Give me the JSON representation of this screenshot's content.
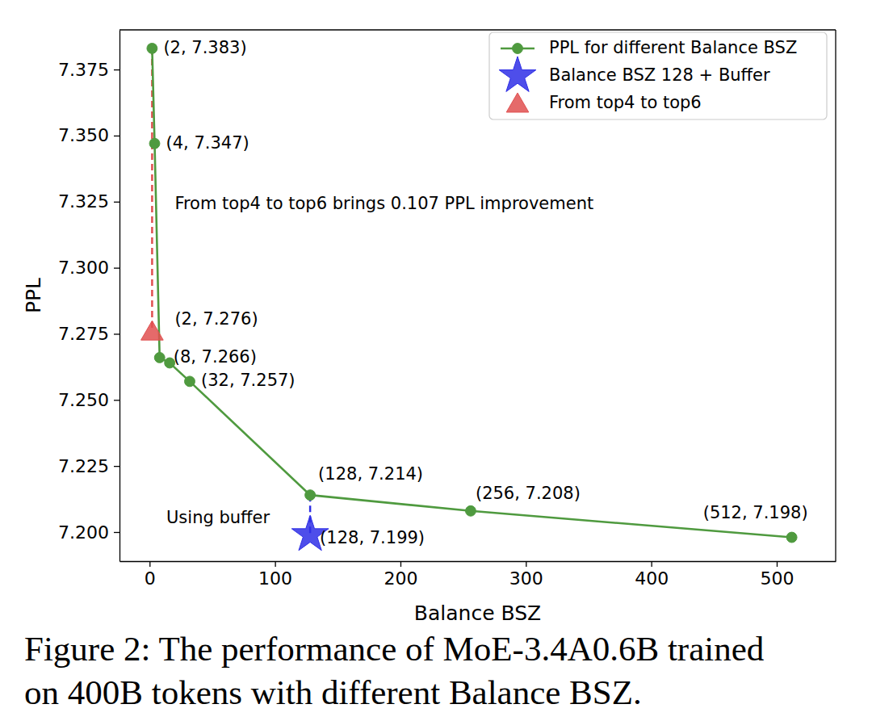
{
  "chart_data": {
    "type": "line",
    "xlabel": "Balance BSZ",
    "ylabel": "PPL",
    "xlim": [
      -24,
      547
    ],
    "ylim": [
      7.189,
      7.39
    ],
    "xticks": [
      0,
      100,
      200,
      300,
      400,
      500
    ],
    "yticks": [
      {
        "value": 7.2,
        "label": "7.200"
      },
      7.225,
      {
        "value": 7.25,
        "label": "7.250"
      },
      7.275,
      {
        "value": 7.3,
        "label": "7.300"
      },
      7.325,
      {
        "value": 7.35,
        "label": "7.350"
      },
      7.375
    ],
    "grid": false,
    "legend": "upper right",
    "data_labels": true,
    "series": [
      {
        "name": "PPL for different Balance BSZ",
        "type": "line",
        "color": "#4f9a3f",
        "marker": "circle",
        "line_style": "solid",
        "x": [
          2,
          4,
          8,
          16,
          32,
          128,
          256,
          512
        ],
        "values": [
          7.383,
          7.347,
          7.266,
          7.264,
          7.257,
          7.214,
          7.208,
          7.198
        ],
        "value_labels": [
          "(2, 7.383)",
          "(4, 7.347)",
          "(8, 7.266)",
          null,
          "(32, 7.257)",
          "(128, 7.214)",
          "(256, 7.208)",
          "(512, 7.198)"
        ]
      },
      {
        "name": "Balance BSZ 128 + Buffer",
        "type": "scatter",
        "color": "#2f2fe6",
        "marker": "star",
        "x": [
          128
        ],
        "values": [
          7.199
        ],
        "value_labels": [
          "(128, 7.199)"
        ],
        "annotation": "Using buffer"
      },
      {
        "name": "From top4 to top6",
        "type": "scatter",
        "color": "#e05050",
        "marker": "triangle",
        "x": [
          2
        ],
        "values": [
          7.276
        ],
        "value_labels": [
          "(2, 7.276)"
        ],
        "annotation": "From top4 to top6 brings 0.107 PPL improvement"
      }
    ],
    "caption": [
      "Figure 2: The performance of MoE-3.4A0.6B trained",
      "on 400B tokens with different Balance BSZ."
    ]
  }
}
